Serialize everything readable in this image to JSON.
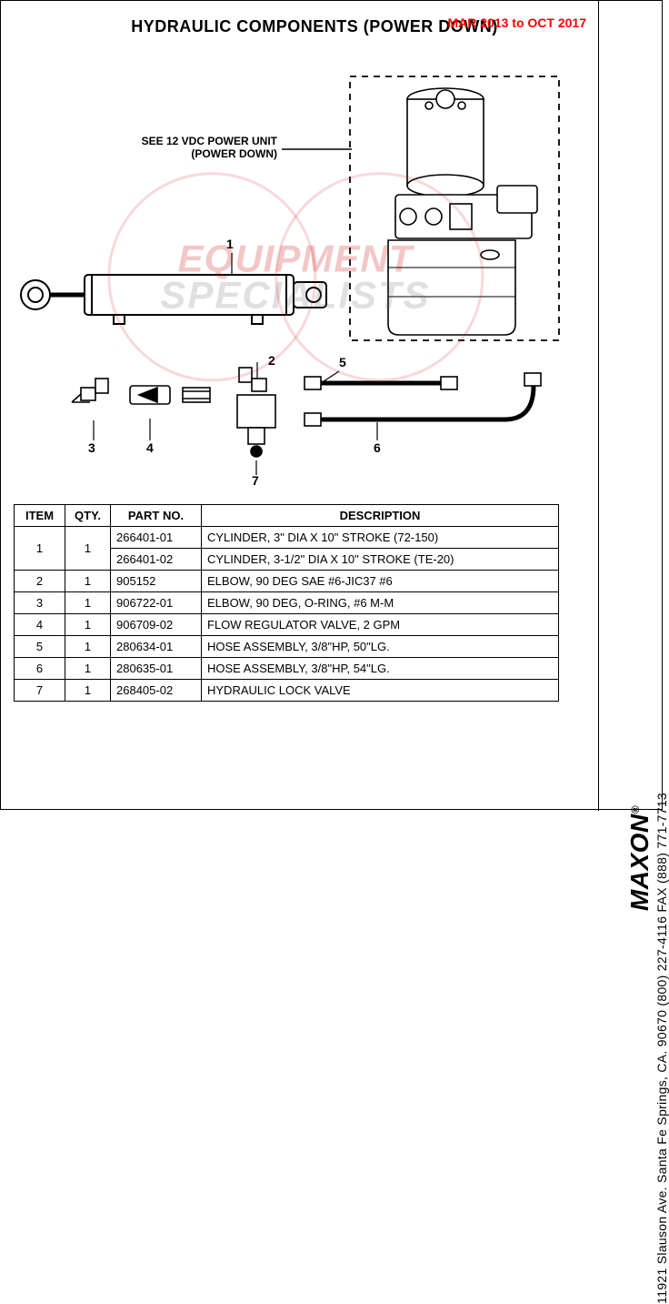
{
  "header": {
    "title": "HYDRAULIC COMPONENTS (POWER DOWN)",
    "date_range": "MAR 2013 to OCT 2017",
    "date_range_color": "#ff0000"
  },
  "diagram": {
    "callout_line1": "SEE 12 VDC POWER UNIT",
    "callout_line2": "(POWER DOWN)",
    "item_labels": {
      "1": "1",
      "2": "2",
      "3": "3",
      "4": "4",
      "5": "5",
      "6": "6",
      "7": "7"
    },
    "cylinder_color": "#000000",
    "pump_outline_color": "#000000",
    "dash_color": "#000000",
    "background_color": "#ffffff"
  },
  "watermark": {
    "line1": "EQUIPMENT",
    "line2": "SPECIALISTS",
    "color_top": "rgba(200,0,0,0.22)",
    "color_bottom": "rgba(100,100,100,0.20)"
  },
  "parts_table": {
    "columns": [
      "ITEM",
      "QTY.",
      "PART NO.",
      "DESCRIPTION"
    ],
    "col_widths": [
      "56px",
      "50px",
      "100px",
      "auto"
    ],
    "rows": [
      {
        "item": "1",
        "qty": "1",
        "partno": "266401-01",
        "desc": "CYLINDER, 3\" DIA X 10\" STROKE (72-150)",
        "rowspan": 2
      },
      {
        "item": "",
        "qty": "",
        "partno": "266401-02",
        "desc": "CYLINDER, 3-1/2\" DIA X 10\" STROKE (TE-20)"
      },
      {
        "item": "2",
        "qty": "1",
        "partno": "905152",
        "desc": "ELBOW, 90 DEG SAE #6-JIC37 #6"
      },
      {
        "item": "3",
        "qty": "1",
        "partno": "906722-01",
        "desc": "ELBOW, 90 DEG, O-RING, #6 M-M"
      },
      {
        "item": "4",
        "qty": "1",
        "partno": "906709-02",
        "desc": "FLOW REGULATOR VALVE, 2 GPM"
      },
      {
        "item": "5",
        "qty": "1",
        "partno": "280634-01",
        "desc": "HOSE ASSEMBLY, 3/8\"HP, 50\"LG."
      },
      {
        "item": "6",
        "qty": "1",
        "partno": "280635-01",
        "desc": "HOSE ASSEMBLY, 3/8\"HP, 54\"LG."
      },
      {
        "item": "7",
        "qty": "1",
        "partno": "268405-02",
        "desc": "HYDRAULIC LOCK VALVE"
      }
    ]
  },
  "sidebar": {
    "brand": "MAXON",
    "reg": "®",
    "address": "11921  Slauson Ave.   Santa Fe Springs,  CA.   90670  (800) 227-4116   FAX (888) 771-7713"
  }
}
